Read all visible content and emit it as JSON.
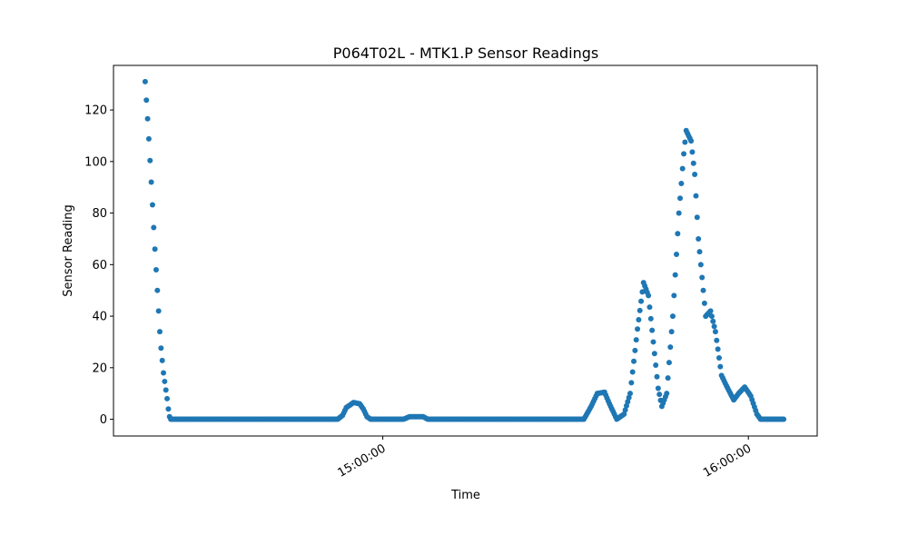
{
  "chart_data": {
    "type": "scatter",
    "title": "P064T02L - MTK1.P Sensor Readings",
    "xlabel": "Time",
    "ylabel": "Sensor Reading",
    "x_unit": "minutes since 14:21:00",
    "xlim": [
      -5.2,
      110.3
    ],
    "ylim": [
      -6.5,
      137.3
    ],
    "x_ticks": [
      {
        "value": 39,
        "label": "15:00:00"
      },
      {
        "value": 99,
        "label": "16:00:00"
      }
    ],
    "y_ticks": [
      {
        "value": 0,
        "label": "0"
      },
      {
        "value": 20,
        "label": "20"
      },
      {
        "value": 40,
        "label": "40"
      },
      {
        "value": 60,
        "label": "60"
      },
      {
        "value": 80,
        "label": "80"
      },
      {
        "value": 100,
        "label": "100"
      },
      {
        "value": 120,
        "label": "120"
      }
    ],
    "series": [
      {
        "name": "MTK1.P",
        "color": "#1f77b4",
        "x_start": 0,
        "x_step": 0.2,
        "x_end": 104.8,
        "anchors": [
          [
            0,
            131
          ],
          [
            0.5,
            113
          ],
          [
            1.0,
            92
          ],
          [
            1.5,
            70
          ],
          [
            2.0,
            50
          ],
          [
            2.5,
            30
          ],
          [
            3.0,
            18
          ],
          [
            3.6,
            8
          ],
          [
            3.9,
            2
          ],
          [
            4.1,
            0
          ],
          [
            31.6,
            0
          ],
          [
            32.4,
            1.5
          ],
          [
            33.0,
            4.5
          ],
          [
            34.2,
            6.5
          ],
          [
            35.2,
            6
          ],
          [
            35.8,
            4
          ],
          [
            36.4,
            1
          ],
          [
            37.0,
            0
          ],
          [
            42.4,
            0
          ],
          [
            43.4,
            1
          ],
          [
            45.6,
            1
          ],
          [
            46.4,
            0
          ],
          [
            72.0,
            0
          ],
          [
            73.2,
            5
          ],
          [
            74.2,
            10
          ],
          [
            75.4,
            10.5
          ],
          [
            76.2,
            6
          ],
          [
            77.4,
            0
          ],
          [
            78.6,
            2
          ],
          [
            79.6,
            10
          ],
          [
            80.8,
            35
          ],
          [
            81.8,
            53
          ],
          [
            82.6,
            48
          ],
          [
            83.4,
            30
          ],
          [
            84.2,
            12
          ],
          [
            84.8,
            5
          ],
          [
            85.6,
            10
          ],
          [
            86.6,
            40
          ],
          [
            87.6,
            80
          ],
          [
            88.4,
            103
          ],
          [
            88.8,
            112
          ],
          [
            89.6,
            108
          ],
          [
            90.2,
            95
          ],
          [
            90.8,
            70
          ],
          [
            91.6,
            50
          ],
          [
            92.0,
            40
          ],
          [
            92.8,
            42
          ],
          [
            93.6,
            34
          ],
          [
            94.6,
            17
          ],
          [
            95.4,
            13
          ],
          [
            96.6,
            7.5
          ],
          [
            97.4,
            10
          ],
          [
            98.4,
            12.5
          ],
          [
            99.4,
            9
          ],
          [
            100.4,
            2
          ],
          [
            101.0,
            0
          ],
          [
            104.8,
            0
          ]
        ]
      }
    ]
  }
}
